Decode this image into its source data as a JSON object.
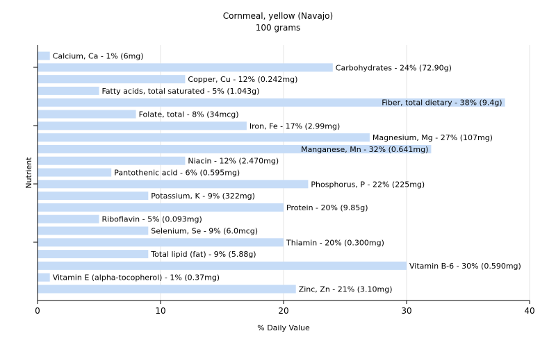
{
  "chart_data": {
    "type": "bar",
    "orientation": "horizontal",
    "title": "Cornmeal, yellow (Navajo)",
    "subtitle": "100 grams",
    "xlabel": "% Daily Value",
    "ylabel": "Nutrient",
    "xlim": [
      0,
      40
    ],
    "xticks": [
      0,
      10,
      20,
      30,
      40
    ],
    "grid": true,
    "bar_color": "#c6dcf7",
    "categories": [
      "Calcium, Ca",
      "Carbohydrates",
      "Copper, Cu",
      "Fatty acids, total saturated",
      "Fiber, total dietary",
      "Folate, total",
      "Iron, Fe",
      "Magnesium, Mg",
      "Manganese, Mn",
      "Niacin",
      "Pantothenic acid",
      "Phosphorus, P",
      "Potassium, K",
      "Protein",
      "Riboflavin",
      "Selenium, Se",
      "Thiamin",
      "Total lipid (fat)",
      "Vitamin B-6",
      "Vitamin E (alpha-tocopherol)",
      "Zinc, Zn"
    ],
    "values": [
      1,
      24,
      12,
      5,
      38,
      8,
      17,
      27,
      32,
      12,
      6,
      22,
      9,
      20,
      5,
      9,
      20,
      9,
      30,
      1,
      21
    ],
    "labels": [
      "Calcium, Ca - 1% (6mg)",
      "Carbohydrates - 24% (72.90g)",
      "Copper, Cu - 12% (0.242mg)",
      "Fatty acids, total saturated - 5% (1.043g)",
      "Fiber, total dietary - 38% (9.4g)",
      "Folate, total - 8% (34mcg)",
      "Iron, Fe - 17% (2.99mg)",
      "Magnesium, Mg - 27% (107mg)",
      "Manganese, Mn - 32% (0.641mg)",
      "Niacin - 12% (2.470mg)",
      "Pantothenic acid - 6% (0.595mg)",
      "Phosphorus, P - 22% (225mg)",
      "Potassium, K - 9% (322mg)",
      "Protein - 20% (9.85g)",
      "Riboflavin - 5% (0.093mg)",
      "Selenium, Se - 9% (6.0mcg)",
      "Thiamin - 20% (0.300mg)",
      "Total lipid (fat) - 9% (5.88g)",
      "Vitamin B-6 - 30% (0.590mg)",
      "Vitamin E (alpha-tocopherol) - 1% (0.37mg)",
      "Zinc, Zn - 21% (3.10mg)"
    ]
  }
}
